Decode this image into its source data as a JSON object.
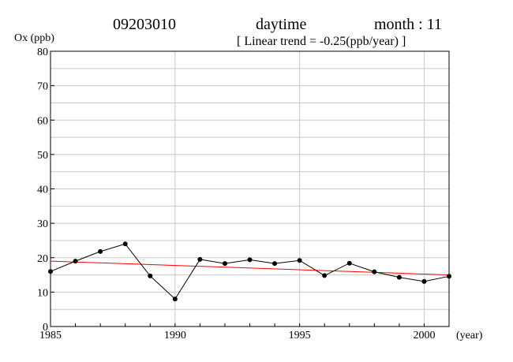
{
  "header": {
    "station": "09203010",
    "period": "daytime",
    "month": "month : 11",
    "trend": "[ Linear trend = -0.25(ppb/year) ]"
  },
  "chart_data": {
    "type": "line",
    "title": "09203010    daytime    month : 11",
    "subtitle": "[ Linear trend = -0.25(ppb/year) ]",
    "xlabel": "(year)",
    "ylabel": "Ox (ppb)",
    "xlim": [
      1985,
      2001
    ],
    "ylim": [
      0,
      80
    ],
    "x_ticks": [
      1985,
      1990,
      1995,
      2000
    ],
    "x_tick_labels": [
      "1985",
      "1990",
      "1995",
      "2000"
    ],
    "y_ticks": [
      0,
      10,
      20,
      30,
      40,
      50,
      60,
      70,
      80
    ],
    "y_tick_labels": [
      "0",
      "10",
      "20",
      "30",
      "40",
      "50",
      "60",
      "70",
      "80"
    ],
    "grid": true,
    "series": [
      {
        "x": [
          1985,
          1986,
          1987,
          1988,
          1989,
          1990,
          1991,
          1992,
          1993,
          1994,
          1995,
          1996,
          1997,
          1998,
          1999,
          2000,
          2001
        ],
        "values": [
          16.0,
          19.0,
          21.8,
          24.0,
          14.7,
          8.0,
          19.5,
          18.3,
          19.4,
          18.3,
          19.2,
          14.8,
          18.4,
          15.9,
          14.3,
          13.1,
          14.6
        ],
        "color": "#000000",
        "marker": "circle"
      }
    ],
    "trend_line": {
      "x": [
        1985,
        2001
      ],
      "values": [
        19.0,
        15.0
      ],
      "slope": -0.25,
      "color": "#ff0000"
    }
  }
}
